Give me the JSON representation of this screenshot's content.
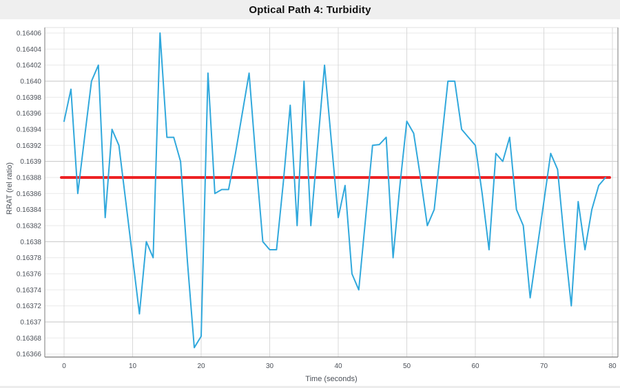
{
  "header": {
    "title": "Optical Path 4: Turbidity"
  },
  "chart_data": {
    "type": "line",
    "title": "Optical Path 4: Turbidity",
    "xlabel": "Time (seconds)",
    "ylabel": "RRAT (rel ratio)",
    "xlim": [
      -2.8,
      80.8
    ],
    "ylim": [
      0.163655,
      0.164067
    ],
    "grid": "on",
    "legend": "none",
    "x_ticks": [
      {
        "label": "0",
        "value": 0
      },
      {
        "label": "10",
        "value": 10
      },
      {
        "label": "20",
        "value": 20
      },
      {
        "label": "30",
        "value": 30
      },
      {
        "label": "40",
        "value": 40
      },
      {
        "label": "50",
        "value": 50
      },
      {
        "label": "60",
        "value": 60
      },
      {
        "label": "70",
        "value": 70
      },
      {
        "label": "80",
        "value": 80
      }
    ],
    "y_ticks": [
      {
        "label": "0.16406",
        "value": 0.16406,
        "major": false
      },
      {
        "label": "0.16404",
        "value": 0.16404,
        "major": false
      },
      {
        "label": "0.16402",
        "value": 0.16402,
        "major": false
      },
      {
        "label": "0.1640",
        "value": 0.164,
        "major": true
      },
      {
        "label": "0.16398",
        "value": 0.16398,
        "major": false
      },
      {
        "label": "0.16396",
        "value": 0.16396,
        "major": false
      },
      {
        "label": "0.16394",
        "value": 0.16394,
        "major": false
      },
      {
        "label": "0.16392",
        "value": 0.16392,
        "major": false
      },
      {
        "label": "0.1639",
        "value": 0.1639,
        "major": true
      },
      {
        "label": "0.16388",
        "value": 0.16388,
        "major": false
      },
      {
        "label": "0.16386",
        "value": 0.16386,
        "major": false
      },
      {
        "label": "0.16384",
        "value": 0.16384,
        "major": false
      },
      {
        "label": "0.16382",
        "value": 0.16382,
        "major": false
      },
      {
        "label": "0.1638",
        "value": 0.1638,
        "major": true
      },
      {
        "label": "0.16378",
        "value": 0.16378,
        "major": false
      },
      {
        "label": "0.16376",
        "value": 0.16376,
        "major": false
      },
      {
        "label": "0.16374",
        "value": 0.16374,
        "major": false
      },
      {
        "label": "0.16372",
        "value": 0.16372,
        "major": false
      },
      {
        "label": "0.1637",
        "value": 0.1637,
        "major": true
      },
      {
        "label": "0.16368",
        "value": 0.16368,
        "major": false
      },
      {
        "label": "0.16366",
        "value": 0.16366,
        "major": false
      }
    ],
    "series": [
      {
        "name": "turbidity",
        "color": "#30a8dc",
        "x_start": 0,
        "x_step": 1,
        "values": [
          0.16395,
          0.16399,
          0.16386,
          0.16393,
          0.164,
          0.16402,
          0.16383,
          0.16394,
          0.16392,
          0.16385,
          0.16378,
          0.16371,
          0.1638,
          0.16378,
          0.16406,
          0.16393,
          0.16393,
          0.1639,
          0.163775,
          0.163668,
          0.163682,
          0.16401,
          0.16386,
          0.163865,
          0.163865,
          0.16391,
          0.16396,
          0.16401,
          0.1639,
          0.1638,
          0.16379,
          0.16379,
          0.163875,
          0.16397,
          0.16382,
          0.164,
          0.16382,
          0.16392,
          0.16402,
          0.163925,
          0.16383,
          0.16387,
          0.16376,
          0.16374,
          0.16383,
          0.16392,
          0.163921,
          0.16393,
          0.16378,
          0.16387,
          0.16395,
          0.163935,
          0.16388,
          0.16382,
          0.16384,
          0.16392,
          0.164,
          0.164,
          0.16394,
          0.16393,
          0.16392,
          0.16386,
          0.16379,
          0.16391,
          0.1639,
          0.16393,
          0.16384,
          0.16382,
          0.16373,
          0.16379,
          0.16385,
          0.16391,
          0.16389,
          0.1638,
          0.16372,
          0.16385,
          0.16379,
          0.16384,
          0.16387,
          0.16388
        ]
      }
    ],
    "trend_line": {
      "name": "mean-line",
      "color": "#ed2224",
      "value": 0.16388,
      "x_start": -0.4,
      "x_end": 79.6
    },
    "colors": {
      "line_blue": "#30a8dc",
      "trend_red": "#ed2224",
      "grid_minor": "#eaeaea",
      "grid_major": "#c6c6c6",
      "grid_vertical": "#d8d8d8",
      "axis": "#a0a0a0",
      "tick_text": "#4b5058",
      "header_bg": "#efefef"
    }
  }
}
